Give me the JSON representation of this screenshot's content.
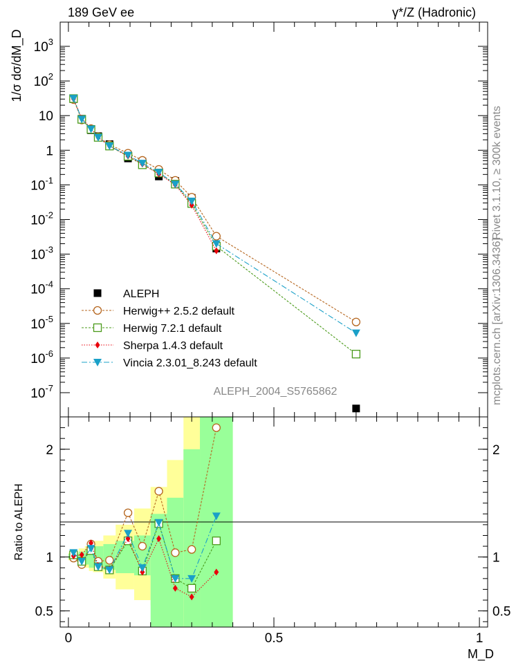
{
  "header": {
    "left": "189 GeV ee",
    "right": "γ*/Z (Hadronic)"
  },
  "side_labels": {
    "rivet": "Rivet 3.1.10, ≥ 300k events",
    "mcplots": "mcplots.cern.ch [arXiv:1306.3436]"
  },
  "analysis_id": "ALEPH_2004_S5765862",
  "chart_data": [
    {
      "type": "line",
      "panel": "main",
      "ylabel": "1/σ dσ/dM_D",
      "yscale": "log",
      "ylim": [
        2e-08,
        5000
      ],
      "xlim": [
        -0.02,
        1.02
      ],
      "yticks": [
        {
          "v": 1e-07,
          "base": "10",
          "exp": "-7"
        },
        {
          "v": 1e-06,
          "base": "10",
          "exp": "-6"
        },
        {
          "v": 1e-05,
          "base": "10",
          "exp": "-5"
        },
        {
          "v": 0.0001,
          "base": "10",
          "exp": "-4"
        },
        {
          "v": 0.001,
          "base": "10",
          "exp": "-3"
        },
        {
          "v": 0.01,
          "base": "10",
          "exp": "-2"
        },
        {
          "v": 0.1,
          "base": "10",
          "exp": "-1"
        },
        {
          "v": 1,
          "base": "1",
          "exp": ""
        },
        {
          "v": 10,
          "base": "10",
          "exp": ""
        },
        {
          "v": 100,
          "base": "10",
          "exp": "2"
        },
        {
          "v": 1000,
          "base": "10",
          "exp": "3"
        }
      ],
      "legend_position": "lower-left",
      "series": [
        {
          "name": "ALEPH",
          "color": "#000000",
          "marker": "square-filled",
          "dash": "none",
          "x": [
            0.0125,
            0.0325,
            0.055,
            0.0725,
            0.1,
            0.145,
            0.18,
            0.22,
            0.26,
            0.3,
            0.36,
            0.7
          ],
          "y": [
            30,
            8.1,
            3.8,
            2.55,
            1.5,
            0.58,
            0.47,
            0.175,
            0.13,
            0.042,
            0.00145,
            3.5e-08
          ]
        },
        {
          "name": "Herwig++ 2.5.2 default",
          "color": "#b5651d",
          "marker": "circle-open",
          "dash": "3,2",
          "x": [
            0.0125,
            0.0325,
            0.055,
            0.0725,
            0.1,
            0.145,
            0.18,
            0.22,
            0.26,
            0.3,
            0.36,
            0.7
          ],
          "y": [
            29,
            7.5,
            4.2,
            2.45,
            1.45,
            0.82,
            0.51,
            0.28,
            0.135,
            0.044,
            0.0033,
            1.1e-05
          ]
        },
        {
          "name": "Herwig 7.2.1 default",
          "color": "#4a9a1a",
          "marker": "square-open",
          "dash": "3,2",
          "x": [
            0.0125,
            0.0325,
            0.055,
            0.0725,
            0.1,
            0.145,
            0.18,
            0.22,
            0.26,
            0.3,
            0.36,
            0.7
          ],
          "y": [
            31,
            7.8,
            4.0,
            2.35,
            1.32,
            0.67,
            0.38,
            0.22,
            0.105,
            0.029,
            0.0017,
            1.3e-06
          ]
        },
        {
          "name": "Sherpa 1.4.3 default",
          "color": "#e8000b",
          "marker": "diamond-filled",
          "dash": "1.5,2",
          "x": [
            0.0125,
            0.0325,
            0.055,
            0.0725,
            0.1,
            0.145,
            0.18,
            0.22,
            0.26,
            0.3,
            0.36,
            0.7
          ],
          "y": [
            30.5,
            8.3,
            4.3,
            2.35,
            1.33,
            0.68,
            0.4,
            0.205,
            0.1,
            0.026,
            0.00125,
            null
          ]
        },
        {
          "name": "Vincia 2.3.01_8.243 default",
          "color": "#1aa0c8",
          "marker": "triangle-down-filled",
          "dash": "8,3,2,3",
          "x": [
            0.0125,
            0.0325,
            0.055,
            0.0725,
            0.1,
            0.145,
            0.18,
            0.22,
            0.26,
            0.3,
            0.36,
            0.7
          ],
          "y": [
            31.5,
            7.9,
            4.1,
            2.35,
            1.33,
            0.72,
            0.42,
            0.23,
            0.105,
            0.034,
            0.002,
            5.3e-06
          ]
        }
      ]
    },
    {
      "type": "line",
      "panel": "ratio",
      "ylabel": "Ratio to ALEPH",
      "ylim": [
        0.35,
        2.3
      ],
      "xlim": [
        -0.02,
        1.02
      ],
      "xlabel": "M_D",
      "yticks": [
        "0.5",
        "1",
        "2"
      ],
      "xticks": [
        "0",
        "0.5",
        "1"
      ],
      "reference_line": 1,
      "bands": {
        "edges": [
          0.0,
          0.025,
          0.04,
          0.05,
          0.06,
          0.085,
          0.115,
          0.16,
          0.2,
          0.24,
          0.28,
          0.32,
          0.4
        ],
        "green_lo": [
          0.98,
          0.95,
          0.93,
          0.9,
          0.9,
          0.88,
          0.85,
          0.83,
          0.35,
          0.35,
          0.35,
          0.35
        ],
        "green_hi": [
          1.03,
          1.05,
          1.07,
          1.1,
          1.1,
          1.12,
          1.15,
          1.2,
          1.4,
          1.55,
          2.0,
          2.3
        ],
        "yellow_lo": [
          0.97,
          0.92,
          0.9,
          0.87,
          0.86,
          0.8,
          0.7,
          0.6,
          0.55,
          0.35,
          0.35,
          0.35
        ],
        "yellow_hi": [
          1.04,
          1.08,
          1.1,
          1.13,
          1.15,
          1.2,
          1.3,
          1.45,
          1.65,
          1.9,
          2.3,
          2.3
        ]
      },
      "series": [
        {
          "name": "Herwig++ 2.5.2 default",
          "x": [
            0.0125,
            0.0325,
            0.055,
            0.0725,
            0.1,
            0.145,
            0.18,
            0.22,
            0.26,
            0.3,
            0.36
          ],
          "y": [
            0.99,
            0.93,
            1.12,
            0.96,
            0.97,
            1.41,
            1.1,
            1.61,
            1.04,
            1.07,
            2.2
          ]
        },
        {
          "name": "Herwig 7.2.1 default",
          "x": [
            0.0125,
            0.0325,
            0.055,
            0.0725,
            0.1,
            0.145,
            0.18,
            0.22,
            0.26,
            0.3,
            0.36
          ],
          "y": [
            1.02,
            0.96,
            1.06,
            0.91,
            0.88,
            1.15,
            0.87,
            1.31,
            0.8,
            0.71,
            1.15
          ]
        },
        {
          "name": "Sherpa 1.4.3 default",
          "x": [
            0.0125,
            0.0325,
            0.055,
            0.0725,
            0.1,
            0.145,
            0.18,
            0.22,
            0.26,
            0.3,
            0.36
          ],
          "y": [
            1.01,
            1.02,
            1.13,
            0.92,
            0.89,
            1.17,
            0.86,
            1.17,
            0.71,
            0.63,
            0.86
          ]
        },
        {
          "name": "Vincia 2.3.01_8.243 default",
          "x": [
            0.0125,
            0.0325,
            0.055,
            0.0725,
            0.1,
            0.145,
            0.18,
            0.22,
            0.26,
            0.3,
            0.36
          ],
          "y": [
            1.04,
            0.96,
            1.08,
            0.91,
            0.88,
            1.22,
            0.9,
            1.32,
            0.8,
            0.8,
            1.38
          ]
        }
      ]
    }
  ]
}
